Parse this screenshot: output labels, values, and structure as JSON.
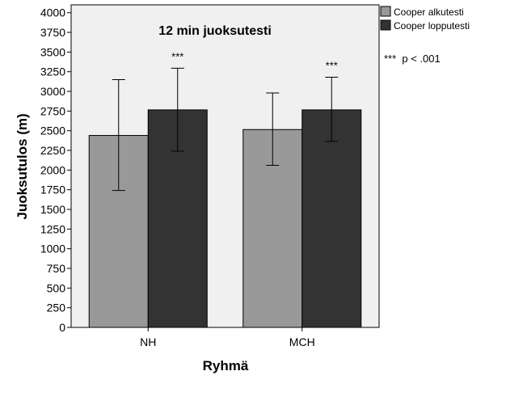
{
  "chart_data": {
    "type": "bar",
    "title": "12 min juoksutesti",
    "xlabel": "Ryhmä",
    "ylabel": "Juoksutulos (m)",
    "ylim": [
      0,
      4100
    ],
    "yticks": [
      0,
      250,
      500,
      750,
      1000,
      1250,
      1500,
      1750,
      2000,
      2250,
      2500,
      2750,
      3000,
      3250,
      3500,
      3750,
      4000
    ],
    "categories": [
      "NH",
      "MCH"
    ],
    "series": [
      {
        "name": "Cooper alkutesti",
        "color": "#999999",
        "values": [
          2440,
          2515
        ],
        "error_low": [
          1740,
          2060
        ],
        "error_high": [
          3150,
          2980
        ],
        "annotations": [
          "",
          ""
        ]
      },
      {
        "name": "Cooper lopputesti",
        "color": "#333333",
        "values": [
          2765,
          2765
        ],
        "error_low": [
          2240,
          2365
        ],
        "error_high": [
          3295,
          3180
        ],
        "annotations": [
          "***",
          "***"
        ]
      }
    ],
    "significance_note": "***  p < .001",
    "grid": false,
    "legend_position": "top-right outside plot",
    "plot_background": "#f0f0f0"
  }
}
